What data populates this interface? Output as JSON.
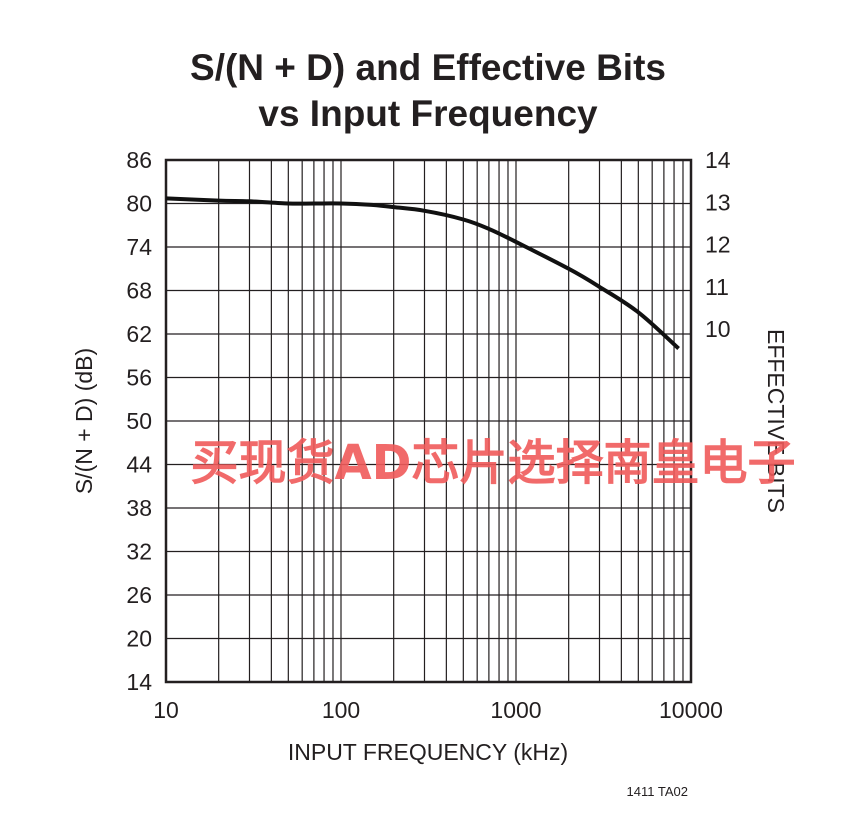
{
  "chart_data": {
    "type": "line",
    "title_lines": [
      "S/(N + D) and Effective Bits",
      "vs Input Frequency"
    ],
    "xlabel": "INPUT FREQUENCY (kHz)",
    "ylabel": "S/(N + D) (dB)",
    "y2label": "EFFECTIVE BITS",
    "x_scale": "log",
    "xlim": [
      10,
      10000
    ],
    "ylim": [
      14,
      86
    ],
    "y2lim": [
      1.66,
      14
    ],
    "x_ticks": [
      "10",
      "100",
      "1000",
      "10000"
    ],
    "y_ticks": [
      "86",
      "80",
      "74",
      "68",
      "62",
      "56",
      "50",
      "44",
      "38",
      "32",
      "26",
      "20",
      "14"
    ],
    "y2_ticks": [
      "14",
      "13",
      "12",
      "11",
      "10"
    ],
    "grid": true,
    "series": [
      {
        "x": [
          10,
          20,
          30,
          50,
          70,
          100,
          150,
          200,
          300,
          500,
          700,
          1000,
          2000,
          3000,
          5000,
          8500
        ],
        "y": [
          80.7,
          80.4,
          80.3,
          80.0,
          80.0,
          80.0,
          79.8,
          79.5,
          79.0,
          77.8,
          76.5,
          74.7,
          71.0,
          68.5,
          65.0,
          60.0
        ]
      }
    ]
  },
  "footer_code": "1411 TA02",
  "watermark": "买现货AD芯片选择南皇电子"
}
